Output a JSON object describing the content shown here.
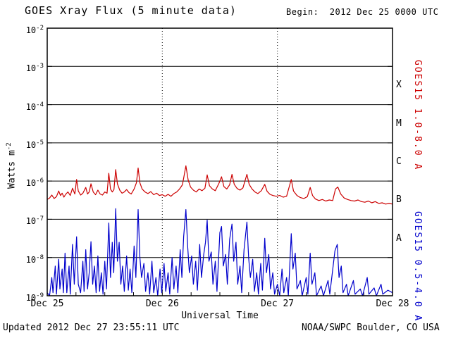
{
  "header": {
    "title": "GOES Xray Flux (5 minute data)",
    "begin": "Begin:  2012 Dec 25 0000 UTC"
  },
  "footer": {
    "updated": "Updated 2012 Dec 27 23:55:11 UTC",
    "source": "NOAA/SWPC Boulder, CO USA"
  },
  "chart_data": {
    "type": "line",
    "title": "GOES Xray Flux (5 minute data)",
    "xlabel": "Universal Time",
    "ylabel_base": "Watts m",
    "ylabel_exponent": "-2",
    "x_tick_labels": [
      "Dec 25",
      "Dec 26",
      "Dec 27",
      "Dec 28"
    ],
    "x_range_days": [
      0,
      3
    ],
    "y_tick_exponents": [
      -2,
      -3,
      -4,
      -5,
      -6,
      -7,
      -8,
      -9
    ],
    "ylim": [
      1e-09,
      0.01
    ],
    "grid": {
      "horizontal": "solid-per-decade",
      "vertical": "dotted-at-day-boundaries"
    },
    "axis_color": "#000000",
    "background_color": "#ffffff",
    "flare_classes": [
      {
        "label": "X",
        "midpoint_exponent": -3.5
      },
      {
        "label": "M",
        "midpoint_exponent": -4.5
      },
      {
        "label": "C",
        "midpoint_exponent": -5.5
      },
      {
        "label": "B",
        "midpoint_exponent": -6.5
      },
      {
        "label": "A",
        "midpoint_exponent": -7.5
      }
    ],
    "series": [
      {
        "name": "GOES15 1.0-8.0 A",
        "color": "#cc0000",
        "points": [
          [
            0.0,
            3.3e-07
          ],
          [
            0.02,
            3.6e-07
          ],
          [
            0.04,
            4.3e-07
          ],
          [
            0.06,
            3.5e-07
          ],
          [
            0.08,
            3.9e-07
          ],
          [
            0.1,
            5.5e-07
          ],
          [
            0.115,
            4.2e-07
          ],
          [
            0.13,
            4.8e-07
          ],
          [
            0.145,
            3.8e-07
          ],
          [
            0.16,
            4.5e-07
          ],
          [
            0.18,
            5.2e-07
          ],
          [
            0.2,
            4.2e-07
          ],
          [
            0.22,
            6.5e-07
          ],
          [
            0.24,
            4.6e-07
          ],
          [
            0.255,
            1.1e-06
          ],
          [
            0.27,
            5.5e-07
          ],
          [
            0.29,
            4.3e-07
          ],
          [
            0.31,
            4.8e-07
          ],
          [
            0.335,
            6.8e-07
          ],
          [
            0.35,
            4.6e-07
          ],
          [
            0.365,
            5.2e-07
          ],
          [
            0.38,
            8.5e-07
          ],
          [
            0.4,
            5.2e-07
          ],
          [
            0.42,
            4.4e-07
          ],
          [
            0.44,
            5.8e-07
          ],
          [
            0.46,
            4.6e-07
          ],
          [
            0.48,
            4.3e-07
          ],
          [
            0.5,
            5.2e-07
          ],
          [
            0.52,
            4.8e-07
          ],
          [
            0.535,
            1.6e-06
          ],
          [
            0.55,
            6.2e-07
          ],
          [
            0.565,
            5.2e-07
          ],
          [
            0.58,
            6e-07
          ],
          [
            0.595,
            2e-06
          ],
          [
            0.61,
            8.5e-07
          ],
          [
            0.63,
            5.8e-07
          ],
          [
            0.65,
            4.8e-07
          ],
          [
            0.67,
            5.2e-07
          ],
          [
            0.69,
            6e-07
          ],
          [
            0.71,
            5e-07
          ],
          [
            0.73,
            4.6e-07
          ],
          [
            0.755,
            6.2e-07
          ],
          [
            0.775,
            9e-07
          ],
          [
            0.79,
            2.2e-06
          ],
          [
            0.805,
            9e-07
          ],
          [
            0.825,
            6.2e-07
          ],
          [
            0.85,
            5.2e-07
          ],
          [
            0.875,
            4.7e-07
          ],
          [
            0.9,
            5.3e-07
          ],
          [
            0.925,
            4.4e-07
          ],
          [
            0.95,
            4.8e-07
          ],
          [
            0.975,
            4.2e-07
          ],
          [
            1.0,
            4.4e-07
          ],
          [
            1.025,
            4e-07
          ],
          [
            1.05,
            4.5e-07
          ],
          [
            1.075,
            4e-07
          ],
          [
            1.1,
            4.7e-07
          ],
          [
            1.125,
            5.2e-07
          ],
          [
            1.15,
            6.2e-07
          ],
          [
            1.175,
            8e-07
          ],
          [
            1.205,
            2.5e-06
          ],
          [
            1.225,
            1.05e-06
          ],
          [
            1.245,
            7e-07
          ],
          [
            1.27,
            5.8e-07
          ],
          [
            1.295,
            5.2e-07
          ],
          [
            1.32,
            6.2e-07
          ],
          [
            1.345,
            5.6e-07
          ],
          [
            1.37,
            6.5e-07
          ],
          [
            1.39,
            1.45e-06
          ],
          [
            1.41,
            7.5e-07
          ],
          [
            1.435,
            6.2e-07
          ],
          [
            1.46,
            5.6e-07
          ],
          [
            1.49,
            8.5e-07
          ],
          [
            1.515,
            1.3e-06
          ],
          [
            1.535,
            7.2e-07
          ],
          [
            1.56,
            6.2e-07
          ],
          [
            1.585,
            8e-07
          ],
          [
            1.605,
            1.5e-06
          ],
          [
            1.625,
            8.2e-07
          ],
          [
            1.65,
            6.4e-07
          ],
          [
            1.675,
            5.8e-07
          ],
          [
            1.7,
            6.6e-07
          ],
          [
            1.735,
            1.5e-06
          ],
          [
            1.755,
            8.2e-07
          ],
          [
            1.78,
            6.2e-07
          ],
          [
            1.805,
            5.2e-07
          ],
          [
            1.83,
            4.7e-07
          ],
          [
            1.86,
            5.6e-07
          ],
          [
            1.89,
            8.2e-07
          ],
          [
            1.91,
            5.4e-07
          ],
          [
            1.935,
            4.5e-07
          ],
          [
            1.96,
            4.2e-07
          ],
          [
            1.99,
            4e-07
          ],
          [
            2.02,
            4.2e-07
          ],
          [
            2.05,
            3.8e-07
          ],
          [
            2.08,
            4e-07
          ],
          [
            2.12,
            1.1e-06
          ],
          [
            2.14,
            5.5e-07
          ],
          [
            2.17,
            4.2e-07
          ],
          [
            2.2,
            3.7e-07
          ],
          [
            2.23,
            3.5e-07
          ],
          [
            2.26,
            3.9e-07
          ],
          [
            2.285,
            6.8e-07
          ],
          [
            2.305,
            4.2e-07
          ],
          [
            2.33,
            3.4e-07
          ],
          [
            2.36,
            3.1e-07
          ],
          [
            2.39,
            3.3e-07
          ],
          [
            2.42,
            3e-07
          ],
          [
            2.45,
            3.2e-07
          ],
          [
            2.48,
            3.1e-07
          ],
          [
            2.505,
            6.2e-07
          ],
          [
            2.525,
            7e-07
          ],
          [
            2.55,
            4.6e-07
          ],
          [
            2.58,
            3.6e-07
          ],
          [
            2.61,
            3.3e-07
          ],
          [
            2.64,
            3.1e-07
          ],
          [
            2.67,
            3e-07
          ],
          [
            2.7,
            3.2e-07
          ],
          [
            2.73,
            2.9e-07
          ],
          [
            2.76,
            2.8e-07
          ],
          [
            2.79,
            3e-07
          ],
          [
            2.82,
            2.7e-07
          ],
          [
            2.85,
            2.9e-07
          ],
          [
            2.88,
            2.6e-07
          ],
          [
            2.91,
            2.7e-07
          ],
          [
            2.94,
            2.5e-07
          ],
          [
            2.97,
            2.6e-07
          ],
          [
            3.0,
            2.5e-07
          ]
        ]
      },
      {
        "name": "GOES15 0.5-4.0 A",
        "color": "#0000cc",
        "points": [
          [
            0.0,
            1.2e-09
          ],
          [
            0.02,
            1e-09
          ],
          [
            0.04,
            3e-09
          ],
          [
            0.05,
            1.2e-09
          ],
          [
            0.07,
            6e-09
          ],
          [
            0.08,
            1.1e-09
          ],
          [
            0.1,
            9e-09
          ],
          [
            0.11,
            1.5e-09
          ],
          [
            0.13,
            5e-09
          ],
          [
            0.14,
            1.2e-09
          ],
          [
            0.155,
            1.3e-08
          ],
          [
            0.17,
            1.2e-09
          ],
          [
            0.19,
            6e-09
          ],
          [
            0.2,
            1.1e-09
          ],
          [
            0.22,
            2.2e-08
          ],
          [
            0.235,
            2e-09
          ],
          [
            0.255,
            3.5e-08
          ],
          [
            0.27,
            2e-09
          ],
          [
            0.29,
            1.2e-09
          ],
          [
            0.31,
            8e-09
          ],
          [
            0.32,
            1.3e-09
          ],
          [
            0.335,
            1.6e-08
          ],
          [
            0.35,
            1.5e-09
          ],
          [
            0.365,
            4e-09
          ],
          [
            0.38,
            2.6e-08
          ],
          [
            0.395,
            2e-09
          ],
          [
            0.41,
            6e-09
          ],
          [
            0.425,
            1.2e-09
          ],
          [
            0.44,
            1.1e-08
          ],
          [
            0.455,
            1.3e-09
          ],
          [
            0.47,
            4e-09
          ],
          [
            0.485,
            1.1e-09
          ],
          [
            0.5,
            8e-09
          ],
          [
            0.515,
            1.5e-09
          ],
          [
            0.535,
            8e-08
          ],
          [
            0.55,
            3e-09
          ],
          [
            0.565,
            2.5e-08
          ],
          [
            0.578,
            4e-09
          ],
          [
            0.595,
            1.9e-07
          ],
          [
            0.61,
            8e-09
          ],
          [
            0.625,
            2.5e-08
          ],
          [
            0.64,
            2e-09
          ],
          [
            0.655,
            6e-09
          ],
          [
            0.67,
            1.3e-09
          ],
          [
            0.69,
            1.1e-08
          ],
          [
            0.705,
            1.4e-09
          ],
          [
            0.72,
            5e-09
          ],
          [
            0.735,
            1.2e-09
          ],
          [
            0.755,
            2e-08
          ],
          [
            0.77,
            3e-09
          ],
          [
            0.79,
            1.8e-07
          ],
          [
            0.805,
            1e-08
          ],
          [
            0.82,
            3e-09
          ],
          [
            0.84,
            7e-09
          ],
          [
            0.855,
            1.3e-09
          ],
          [
            0.875,
            4e-09
          ],
          [
            0.89,
            1.1e-09
          ],
          [
            0.91,
            8e-09
          ],
          [
            0.925,
            1.2e-09
          ],
          [
            0.945,
            3e-09
          ],
          [
            0.96,
            1e-09
          ],
          [
            0.98,
            5e-09
          ],
          [
            0.995,
            1.2e-09
          ],
          [
            1.015,
            7e-09
          ],
          [
            1.03,
            1.3e-09
          ],
          [
            1.05,
            4e-09
          ],
          [
            1.065,
            1.1e-09
          ],
          [
            1.085,
            1e-08
          ],
          [
            1.1,
            1.5e-09
          ],
          [
            1.12,
            6e-09
          ],
          [
            1.135,
            1.2e-09
          ],
          [
            1.155,
            1.6e-08
          ],
          [
            1.17,
            3e-09
          ],
          [
            1.185,
            3.5e-08
          ],
          [
            1.205,
            1.8e-07
          ],
          [
            1.22,
            2e-08
          ],
          [
            1.235,
            4e-09
          ],
          [
            1.255,
            1.1e-08
          ],
          [
            1.27,
            2e-09
          ],
          [
            1.29,
            8e-09
          ],
          [
            1.305,
            1.4e-09
          ],
          [
            1.325,
            2.2e-08
          ],
          [
            1.34,
            3e-09
          ],
          [
            1.36,
            1.2e-08
          ],
          [
            1.375,
            2.5e-08
          ],
          [
            1.39,
            9.5e-08
          ],
          [
            1.405,
            8e-09
          ],
          [
            1.425,
            1.4e-08
          ],
          [
            1.44,
            2e-09
          ],
          [
            1.46,
            8e-09
          ],
          [
            1.475,
            1.3e-09
          ],
          [
            1.5,
            4.5e-08
          ],
          [
            1.515,
            6.5e-08
          ],
          [
            1.53,
            6e-09
          ],
          [
            1.55,
            1.2e-08
          ],
          [
            1.565,
            2e-09
          ],
          [
            1.585,
            3e-08
          ],
          [
            1.605,
            7.5e-08
          ],
          [
            1.62,
            8e-09
          ],
          [
            1.64,
            2.5e-08
          ],
          [
            1.655,
            2e-09
          ],
          [
            1.675,
            6e-09
          ],
          [
            1.69,
            1.2e-09
          ],
          [
            1.71,
            1.6e-08
          ],
          [
            1.735,
            8.5e-08
          ],
          [
            1.75,
            1e-08
          ],
          [
            1.765,
            3e-09
          ],
          [
            1.785,
            9e-09
          ],
          [
            1.8,
            1.3e-09
          ],
          [
            1.82,
            4e-09
          ],
          [
            1.835,
            1.1e-09
          ],
          [
            1.855,
            7e-09
          ],
          [
            1.87,
            1.4e-09
          ],
          [
            1.89,
            3.2e-08
          ],
          [
            1.905,
            4e-09
          ],
          [
            1.925,
            1.2e-08
          ],
          [
            1.94,
            1.5e-09
          ],
          [
            1.96,
            4e-09
          ],
          [
            1.975,
            1.1e-09
          ],
          [
            2.0,
            2e-09
          ],
          [
            2.02,
            1e-09
          ],
          [
            2.04,
            5e-09
          ],
          [
            2.055,
            1.2e-09
          ],
          [
            2.08,
            3e-09
          ],
          [
            2.095,
            1e-09
          ],
          [
            2.12,
            4.2e-08
          ],
          [
            2.135,
            5e-09
          ],
          [
            2.155,
            1.3e-08
          ],
          [
            2.17,
            1.5e-09
          ],
          [
            2.2,
            2.5e-09
          ],
          [
            2.215,
            1e-09
          ],
          [
            2.25,
            3e-09
          ],
          [
            2.265,
            1.1e-09
          ],
          [
            2.285,
            1.3e-08
          ],
          [
            2.3,
            2e-09
          ],
          [
            2.325,
            4e-09
          ],
          [
            2.34,
            1e-09
          ],
          [
            2.38,
            1.8e-09
          ],
          [
            2.4,
            1e-09
          ],
          [
            2.44,
            2.5e-09
          ],
          [
            2.455,
            1.1e-09
          ],
          [
            2.5,
            1.5e-08
          ],
          [
            2.52,
            2.2e-08
          ],
          [
            2.535,
            3e-09
          ],
          [
            2.555,
            6e-09
          ],
          [
            2.57,
            1.2e-09
          ],
          [
            2.6,
            2e-09
          ],
          [
            2.615,
            1e-09
          ],
          [
            2.66,
            2.5e-09
          ],
          [
            2.675,
            1.1e-09
          ],
          [
            2.72,
            1.5e-09
          ],
          [
            2.74,
            1e-09
          ],
          [
            2.78,
            3e-09
          ],
          [
            2.795,
            1.1e-09
          ],
          [
            2.84,
            1.6e-09
          ],
          [
            2.86,
            1e-09
          ],
          [
            2.9,
            2e-09
          ],
          [
            2.915,
            1.1e-09
          ],
          [
            2.96,
            1.4e-09
          ],
          [
            3.0,
            1.2e-09
          ]
        ]
      }
    ]
  }
}
